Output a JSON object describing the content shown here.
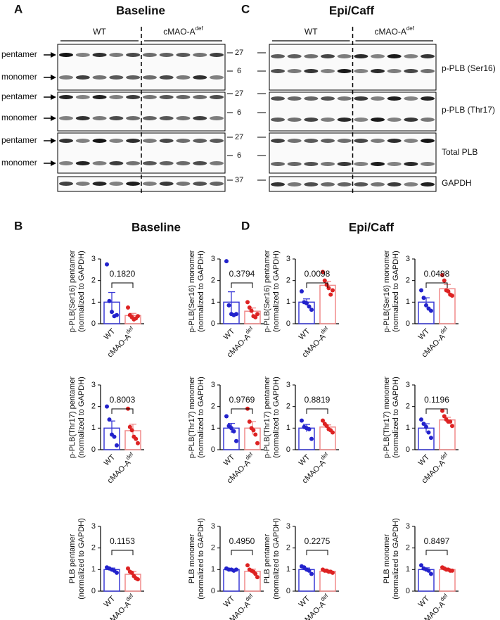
{
  "blots": [
    {
      "letter": "A",
      "title": "Baseline",
      "groups": [
        {
          "text": "WT"
        },
        {
          "text": "cMAO-A",
          "sup": "def"
        }
      ],
      "band_labels": [
        "pentamer",
        "monomer",
        "pentamer",
        "monomer",
        "pentamer",
        "monomer"
      ],
      "markers": [
        27,
        6,
        27,
        6,
        27,
        6,
        37
      ]
    },
    {
      "letter": "C",
      "title": "Epi/Caff",
      "groups": [
        {
          "text": "WT"
        },
        {
          "text": "cMAO-A",
          "sup": "def"
        }
      ],
      "row_labels": [
        "p-PLB (Ser16)",
        "p-PLB (Thr17)",
        "Total PLB",
        "GAPDH"
      ]
    }
  ],
  "chart_panels": [
    {
      "letter": "B",
      "title": "Baseline"
    },
    {
      "letter": "D",
      "title": "Epi/Caff"
    }
  ],
  "group_colors": {
    "WT": {
      "point": "#2222cc",
      "bar": "#3a3ad6"
    },
    "cMAO": {
      "point": "#dd2222",
      "bar": "#f08a8a"
    }
  },
  "chart_data": [
    {
      "type": "bar",
      "ylabel": [
        "p-PLB(Ser16) pentamer",
        "(normalized to GAPDH)"
      ],
      "categories": [
        {
          "text": "WT"
        },
        {
          "text": "cMAO-A",
          "sup": "def"
        }
      ],
      "values": [
        1.0,
        0.38
      ],
      "errors": [
        0.45,
        0.1
      ],
      "points": [
        [
          2.75,
          1.05,
          0.55,
          0.35,
          0.4
        ],
        [
          0.75,
          0.4,
          0.3,
          0.2,
          0.25,
          0.35
        ]
      ],
      "p_value": "0.1820",
      "ylim": [
        0,
        3
      ],
      "yticks": [
        0,
        1,
        2,
        3
      ]
    },
    {
      "type": "bar",
      "ylabel": [
        "p-PLB(Ser16) monomer",
        "(normalized to GAPDH)"
      ],
      "categories": [
        {
          "text": "WT"
        },
        {
          "text": "cMAO-A",
          "sup": "def"
        }
      ],
      "values": [
        1.0,
        0.58
      ],
      "errors": [
        0.48,
        0.15
      ],
      "points": [
        [
          2.9,
          0.85,
          0.45,
          0.4,
          0.45
        ],
        [
          1.0,
          0.75,
          0.6,
          0.35,
          0.3,
          0.45
        ]
      ],
      "p_value": "0.3794",
      "ylim": [
        0,
        3
      ],
      "yticks": [
        0,
        1,
        2,
        3
      ]
    },
    {
      "type": "bar",
      "ylabel": [
        "p-PLB(Thr17) pentamer",
        "(normalized to GAPDH)"
      ],
      "categories": [
        {
          "text": "WT"
        },
        {
          "text": "cMAO-A",
          "sup": "def"
        }
      ],
      "values": [
        1.0,
        0.88
      ],
      "errors": [
        0.33,
        0.3
      ],
      "points": [
        [
          2.0,
          1.4,
          0.7,
          0.6,
          0.2
        ],
        [
          1.9,
          1.05,
          0.9,
          0.6,
          0.5,
          0.3
        ]
      ],
      "p_value": "0.8003",
      "ylim": [
        0,
        3
      ],
      "yticks": [
        0,
        1,
        2,
        3
      ]
    },
    {
      "type": "bar",
      "ylabel": [
        "p-PLB(Thr17) monomer",
        "(normalized to GAPDH)"
      ],
      "categories": [
        {
          "text": "WT"
        },
        {
          "text": "cMAO-A",
          "sup": "def"
        }
      ],
      "values": [
        1.0,
        1.0
      ],
      "errors": [
        0.22,
        0.3
      ],
      "points": [
        [
          1.55,
          1.1,
          1.0,
          0.85,
          0.4
        ],
        [
          1.9,
          1.3,
          1.0,
          0.9,
          0.7,
          0.3
        ]
      ],
      "p_value": "0.9769",
      "ylim": [
        0,
        3
      ],
      "yticks": [
        0,
        1,
        2,
        3
      ]
    },
    {
      "type": "bar",
      "ylabel": [
        "PLB pentamer",
        "(normalized to GAPDH)"
      ],
      "categories": [
        {
          "text": "WT"
        },
        {
          "text": "cMAO-A",
          "sup": "def"
        }
      ],
      "values": [
        1.0,
        0.78
      ],
      "errors": [
        0.07,
        0.13
      ],
      "points": [
        [
          1.1,
          1.05,
          1.0,
          0.95,
          0.85
        ],
        [
          1.05,
          0.9,
          0.85,
          0.7,
          0.6,
          0.55
        ]
      ],
      "p_value": "0.1153",
      "ylim": [
        0,
        3
      ],
      "yticks": [
        0,
        1,
        2,
        3
      ]
    },
    {
      "type": "bar",
      "ylabel": [
        "PLB monomer",
        "(normalized to GAPDH)"
      ],
      "categories": [
        {
          "text": "WT"
        },
        {
          "text": "cMAO-A",
          "sup": "def"
        }
      ],
      "values": [
        1.0,
        0.92
      ],
      "errors": [
        0.03,
        0.1
      ],
      "points": [
        [
          1.05,
          1.0,
          1.0,
          0.95,
          1.0
        ],
        [
          1.2,
          1.0,
          0.95,
          0.9,
          0.8,
          0.65
        ]
      ],
      "p_value": "0.4950",
      "ylim": [
        0,
        3
      ],
      "yticks": [
        0,
        1,
        2,
        3
      ]
    },
    {
      "type": "bar",
      "ylabel": [
        "p-PLB(Ser16) pentamer",
        "(normalized to GAPDH)"
      ],
      "categories": [
        {
          "text": "WT"
        },
        {
          "text": "cMAO-A",
          "sup": "def"
        }
      ],
      "values": [
        1.0,
        1.78
      ],
      "errors": [
        0.15,
        0.18
      ],
      "points": [
        [
          1.5,
          1.0,
          0.95,
          0.8,
          0.65
        ],
        [
          2.4,
          2.0,
          1.8,
          1.65,
          1.35,
          1.55
        ]
      ],
      "p_value": "0.0098",
      "ylim": [
        0,
        3
      ],
      "yticks": [
        0,
        1,
        2,
        3
      ]
    },
    {
      "type": "bar",
      "ylabel": [
        "p-PLB(Ser16) monomer",
        "(normalized to GAPDH)"
      ],
      "categories": [
        {
          "text": "WT"
        },
        {
          "text": "cMAO-A",
          "sup": "def"
        }
      ],
      "values": [
        1.0,
        1.62
      ],
      "errors": [
        0.2,
        0.2
      ],
      "points": [
        [
          1.55,
          1.2,
          0.85,
          0.7,
          0.6
        ],
        [
          2.25,
          2.0,
          1.55,
          1.5,
          1.35,
          1.3
        ]
      ],
      "p_value": "0.0498",
      "ylim": [
        0,
        3
      ],
      "yticks": [
        0,
        1,
        2,
        3
      ]
    },
    {
      "type": "bar",
      "ylabel": [
        "p-PLB(Thr17) pentamer",
        "(normalized to GAPDH)"
      ],
      "categories": [
        {
          "text": "WT"
        },
        {
          "text": "cMAO-A",
          "sup": "def"
        }
      ],
      "values": [
        1.0,
        1.05
      ],
      "errors": [
        0.17,
        0.1
      ],
      "points": [
        [
          1.35,
          1.05,
          1.0,
          0.95,
          0.5
        ],
        [
          1.35,
          1.2,
          1.1,
          0.95,
          0.9,
          0.8
        ]
      ],
      "p_value": "0.8819",
      "ylim": [
        0,
        3
      ],
      "yticks": [
        0,
        1,
        2,
        3
      ]
    },
    {
      "type": "bar",
      "ylabel": [
        "p-PLB(Thr17) monomer",
        "(normalized to GAPDH)"
      ],
      "categories": [
        {
          "text": "WT"
        },
        {
          "text": "cMAO-A",
          "sup": "def"
        }
      ],
      "values": [
        1.0,
        1.38
      ],
      "errors": [
        0.2,
        0.12
      ],
      "points": [
        [
          1.4,
          1.2,
          1.05,
          0.8,
          0.55
        ],
        [
          1.8,
          1.55,
          1.4,
          1.3,
          1.3,
          1.1
        ]
      ],
      "p_value": "0.1196",
      "ylim": [
        0,
        3
      ],
      "yticks": [
        0,
        1,
        2,
        3
      ]
    },
    {
      "type": "bar",
      "ylabel": [
        "PLB pentamer",
        "(normalized to GAPDH)"
      ],
      "categories": [
        {
          "text": "WT"
        },
        {
          "text": "cMAO-A",
          "sup": "def"
        }
      ],
      "values": [
        1.0,
        0.92
      ],
      "errors": [
        0.07,
        0.03
      ],
      "points": [
        [
          1.15,
          1.1,
          1.0,
          0.95,
          0.8
        ],
        [
          1.0,
          0.95,
          0.95,
          0.9,
          0.9,
          0.85
        ]
      ],
      "p_value": "0.2275",
      "ylim": [
        0,
        3
      ],
      "yticks": [
        0,
        1,
        2,
        3
      ]
    },
    {
      "type": "bar",
      "ylabel": [
        "PLB monomer",
        "(normalized to GAPDH)"
      ],
      "categories": [
        {
          "text": "WT"
        },
        {
          "text": "cMAO-A",
          "sup": "def"
        }
      ],
      "values": [
        1.0,
        1.0
      ],
      "errors": [
        0.08,
        0.04
      ],
      "points": [
        [
          1.2,
          1.05,
          1.0,
          0.95,
          0.8
        ],
        [
          1.1,
          1.05,
          1.0,
          1.0,
          0.95,
          0.95
        ]
      ],
      "p_value": "0.8497",
      "ylim": [
        0,
        3
      ],
      "yticks": [
        0,
        1,
        2,
        3
      ]
    }
  ]
}
